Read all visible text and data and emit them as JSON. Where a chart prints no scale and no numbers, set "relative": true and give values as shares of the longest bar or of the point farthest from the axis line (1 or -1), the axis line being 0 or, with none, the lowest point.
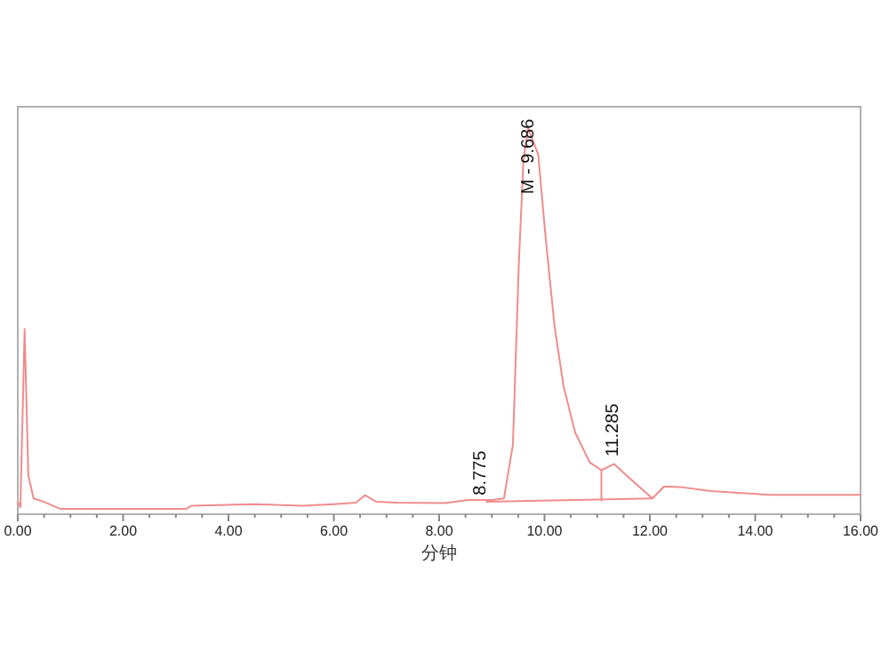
{
  "chart_data": {
    "type": "line",
    "relative": true,
    "xlabel": "分钟",
    "xlim": [
      0,
      16
    ],
    "xticks": [
      {
        "value": 0,
        "label": "0.00"
      },
      {
        "value": 0.5,
        "label": null
      },
      {
        "value": 1,
        "label": null
      },
      {
        "value": 1.5,
        "label": null
      },
      {
        "value": 2,
        "label": "2.00"
      },
      {
        "value": 2.5,
        "label": null
      },
      {
        "value": 3,
        "label": null
      },
      {
        "value": 3.5,
        "label": null
      },
      {
        "value": 4,
        "label": "4.00"
      },
      {
        "value": 4.5,
        "label": null
      },
      {
        "value": 5,
        "label": null
      },
      {
        "value": 5.5,
        "label": null
      },
      {
        "value": 6,
        "label": "6.00"
      },
      {
        "value": 6.5,
        "label": null
      },
      {
        "value": 7,
        "label": null
      },
      {
        "value": 7.5,
        "label": null
      },
      {
        "value": 8,
        "label": "8.00"
      },
      {
        "value": 8.5,
        "label": null
      },
      {
        "value": 9,
        "label": null
      },
      {
        "value": 9.5,
        "label": null
      },
      {
        "value": 10,
        "label": "10.00"
      },
      {
        "value": 10.5,
        "label": null
      },
      {
        "value": 11,
        "label": null
      },
      {
        "value": 11.5,
        "label": null
      },
      {
        "value": 12,
        "label": "12.00"
      },
      {
        "value": 12.5,
        "label": null
      },
      {
        "value": 13,
        "label": null
      },
      {
        "value": 13.5,
        "label": null
      },
      {
        "value": 14,
        "label": "14.00"
      },
      {
        "value": 14.5,
        "label": null
      },
      {
        "value": 15,
        "label": null
      },
      {
        "value": 15.5,
        "label": null
      },
      {
        "value": 16,
        "label": "16.00"
      }
    ],
    "grid": false,
    "series": [
      {
        "color": "#f08c8c",
        "x": [
          0,
          0.05,
          0.13,
          0.2,
          0.3,
          0.5,
          0.8,
          3.2,
          3.3,
          4.5,
          5.4,
          6.0,
          6.42,
          6.59,
          6.81,
          7.2,
          8.11,
          8.55,
          9.0,
          9.23,
          9.4,
          9.51,
          9.6,
          9.69,
          9.88,
          10.02,
          10.19,
          10.36,
          10.58,
          10.86,
          11.08,
          11.32,
          11.6,
          12.05,
          12.27,
          12.6,
          13.16,
          14.28,
          16.0
        ],
        "values": [
          0.032,
          0.018,
          0.479,
          0.1,
          0.041,
          0.032,
          0.014,
          0.014,
          0.022,
          0.026,
          0.022,
          0.026,
          0.03,
          0.049,
          0.032,
          0.03,
          0.029,
          0.037,
          0.037,
          0.041,
          0.18,
          0.64,
          0.917,
          1.0,
          0.932,
          0.718,
          0.487,
          0.333,
          0.212,
          0.134,
          0.114,
          0.13,
          0.095,
          0.041,
          0.072,
          0.07,
          0.06,
          0.05,
          0.05
        ]
      },
      {
        "color": "#f08c8c",
        "x": [
          8.9,
          12.05
        ],
        "values": [
          0.032,
          0.041
        ]
      },
      {
        "color": "#f08c8c",
        "x": [
          11.08,
          11.08
        ],
        "values": [
          0.035,
          0.114
        ]
      }
    ],
    "annotations": [
      {
        "text": "M - 9.686",
        "x": 9.686,
        "y": 0.82
      },
      {
        "text": "8.775",
        "x": 8.775,
        "y": 0.04
      },
      {
        "text": "11.285",
        "x": 11.285,
        "y": 0.14
      }
    ]
  }
}
